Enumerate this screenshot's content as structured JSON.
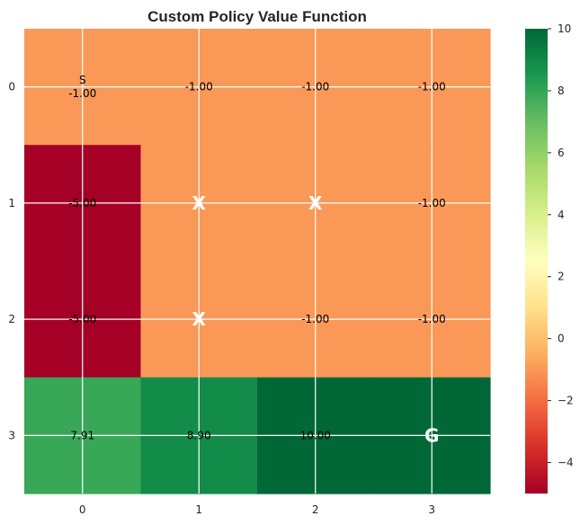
{
  "chart_data": {
    "type": "heatmap",
    "title": "Custom Policy Value Function",
    "xlabel": "",
    "ylabel": "",
    "x_ticks": [
      "0",
      "1",
      "2",
      "3"
    ],
    "y_ticks": [
      "0",
      "1",
      "2",
      "3"
    ],
    "values": [
      [
        -1.0,
        -1.0,
        -1.0,
        -1.0
      ],
      [
        -5.0,
        -1.0,
        -1.0,
        -1.0
      ],
      [
        -5.0,
        -1.0,
        -1.0,
        -1.0
      ],
      [
        7.91,
        8.9,
        10.0,
        10.0
      ]
    ],
    "cell_labels": [
      [
        "S\n-1.00",
        "-1.00",
        "-1.00",
        "-1.00"
      ],
      [
        "-5.00",
        "X",
        "X",
        "-1.00"
      ],
      [
        "-5.00",
        "X",
        "-1.00",
        "-1.00"
      ],
      [
        "7.91",
        "8.90",
        "10.00",
        "G"
      ]
    ],
    "colormap": "RdYlGn",
    "vmin": -5,
    "vmax": 10,
    "colorbar_ticks": [
      "10",
      "8",
      "6",
      "4",
      "2",
      "0",
      "−2",
      "−4"
    ],
    "colorbar_tick_values": [
      10,
      8,
      6,
      4,
      2,
      0,
      -2,
      -4
    ],
    "grid": true
  }
}
